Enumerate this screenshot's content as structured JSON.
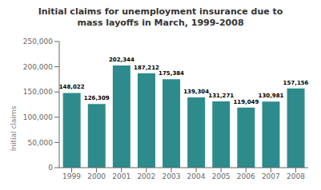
{
  "chart_data": {
    "type": "bar",
    "title": "Initial claims for unemployment insurance due to\nmass layoffs in March, 1999-2008",
    "categories": [
      "1999",
      "2000",
      "2001",
      "2002",
      "2003",
      "2004",
      "2005",
      "2006",
      "2007",
      "2008"
    ],
    "values": [
      148022,
      126309,
      202344,
      187212,
      175384,
      139304,
      131271,
      119049,
      130981,
      157156
    ],
    "value_labels": [
      "148,022",
      "126,309",
      "202,344",
      "187,212",
      "175,384",
      "139,304",
      "131,271",
      "119,049",
      "130,981",
      "157,156"
    ],
    "data_labels": true,
    "color": "#2e8b8b",
    "ylabel": "Initial claims",
    "ylim": [
      0,
      250000
    ],
    "yticks": [
      0,
      {
        "value": 50000,
        "label": "50,000"
      },
      {
        "value": 100000,
        "label": "100,000"
      },
      {
        "value": 150000,
        "label": "150,000"
      },
      {
        "value": 200000,
        "label": "200,000"
      },
      {
        "value": 250000,
        "label": "250,000"
      }
    ],
    "grid": false
  }
}
